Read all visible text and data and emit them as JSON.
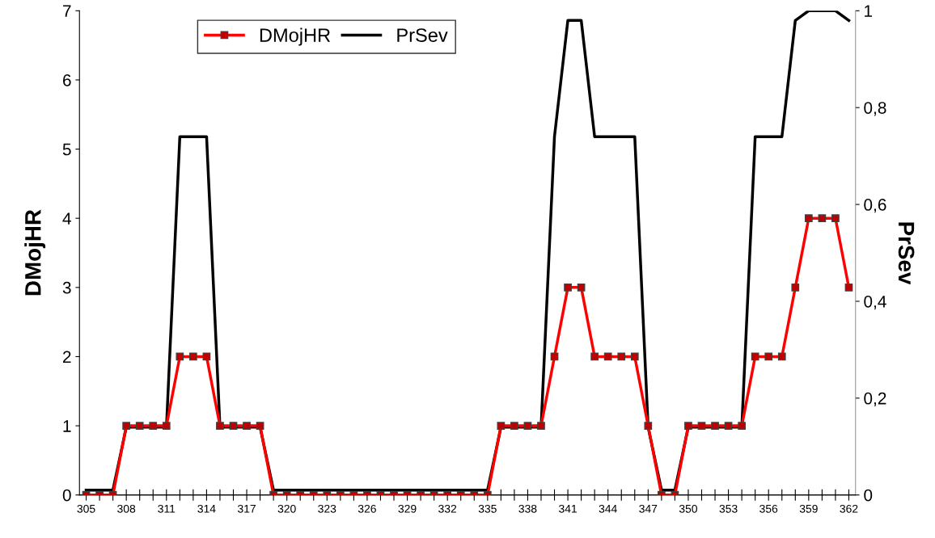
{
  "chart_data": {
    "type": "line",
    "ylabel": "DMojHR",
    "y2label": "PrSev",
    "categories": [
      "305",
      null,
      null,
      "308",
      null,
      null,
      "311",
      null,
      null,
      "314",
      null,
      null,
      "317",
      null,
      null,
      "320",
      null,
      null,
      "323",
      null,
      null,
      "326",
      null,
      null,
      "329",
      null,
      null,
      "332",
      null,
      null,
      "335",
      null,
      null,
      "338",
      null,
      null,
      "341",
      null,
      null,
      "344",
      null,
      null,
      "347",
      null,
      null,
      "350",
      null,
      null,
      "353",
      null,
      null,
      "356",
      null,
      null,
      "359",
      null,
      null,
      "362"
    ],
    "series": [
      {
        "name": "DMojHR",
        "color": "#ff0000",
        "marker": "square",
        "values": [
          0,
          0,
          0,
          1,
          1,
          1,
          1,
          2,
          2,
          2,
          1,
          1,
          1,
          1,
          0,
          0,
          0,
          0,
          0,
          0,
          0,
          0,
          0,
          0,
          0,
          0,
          0,
          0,
          0,
          0,
          0,
          1,
          1,
          1,
          1,
          2,
          3,
          3,
          2,
          2,
          2,
          2,
          1,
          0,
          0,
          1,
          1,
          1,
          1,
          1,
          2,
          2,
          2,
          3,
          4,
          4,
          4,
          3
        ]
      },
      {
        "name": "PrSev",
        "color": "#000000",
        "axis": "y2",
        "values": [
          0.01,
          0.01,
          0.01,
          0.14,
          0.14,
          0.14,
          0.14,
          0.74,
          0.74,
          0.74,
          0.14,
          0.14,
          0.14,
          0.14,
          0.01,
          0.01,
          0.01,
          0.01,
          0.01,
          0.01,
          0.01,
          0.01,
          0.01,
          0.01,
          0.01,
          0.01,
          0.01,
          0.01,
          0.01,
          0.01,
          0.01,
          0.14,
          0.14,
          0.14,
          0.14,
          0.74,
          0.98,
          0.98,
          0.74,
          0.74,
          0.74,
          0.74,
          0.14,
          0.01,
          0.01,
          0.14,
          0.14,
          0.14,
          0.14,
          0.14,
          0.74,
          0.74,
          0.74,
          0.98,
          1,
          1,
          1,
          0.98
        ]
      }
    ],
    "ylim": [
      0,
      7
    ],
    "yticks": [
      0,
      1,
      2,
      3,
      4,
      5,
      6,
      7
    ],
    "y2lim": [
      0,
      1
    ],
    "y2ticks": [
      {
        "value": 0,
        "label": "0"
      },
      {
        "value": 0.2,
        "label": "0,2"
      },
      {
        "value": 0.4,
        "label": "0,4"
      },
      {
        "value": 0.6,
        "label": "0,6"
      },
      {
        "value": 0.8,
        "label": "0,8"
      },
      {
        "value": 1,
        "label": "1"
      }
    ],
    "legend": "top left",
    "grid": false
  }
}
